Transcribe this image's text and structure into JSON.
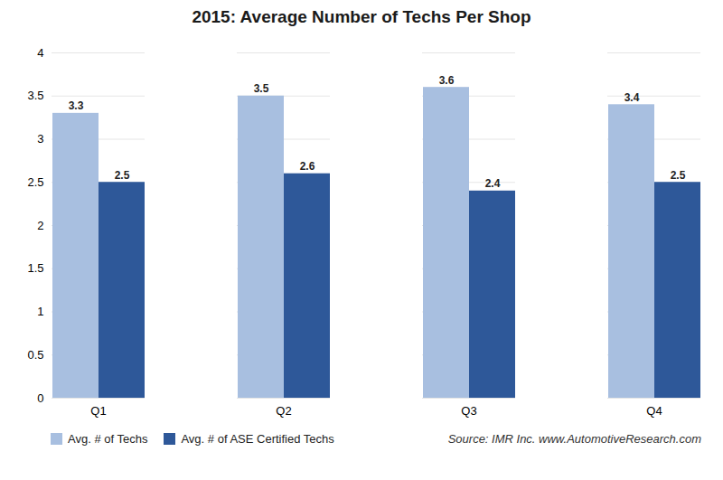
{
  "chart_data": {
    "type": "bar",
    "title": "2015: Average Number of Techs Per Shop",
    "categories": [
      "Q1",
      "Q2",
      "Q3",
      "Q4"
    ],
    "series": [
      {
        "name": "Avg. # of Techs",
        "color": "#a8bfe0",
        "values": [
          3.3,
          3.5,
          3.6,
          3.4
        ]
      },
      {
        "name": "Avg. # of ASE Certified Techs",
        "color": "#2e5899",
        "values": [
          2.5,
          2.6,
          2.4,
          2.5
        ]
      }
    ],
    "ylim": [
      0,
      4
    ],
    "yticks": [
      0,
      0.5,
      1.0,
      1.5,
      2.0,
      2.5,
      3.0,
      3.5,
      4.0
    ],
    "grid": true,
    "data_labels": true,
    "legend": "bottom",
    "annotation": "Source: IMR Inc. www.AutomotiveResearch.com"
  }
}
